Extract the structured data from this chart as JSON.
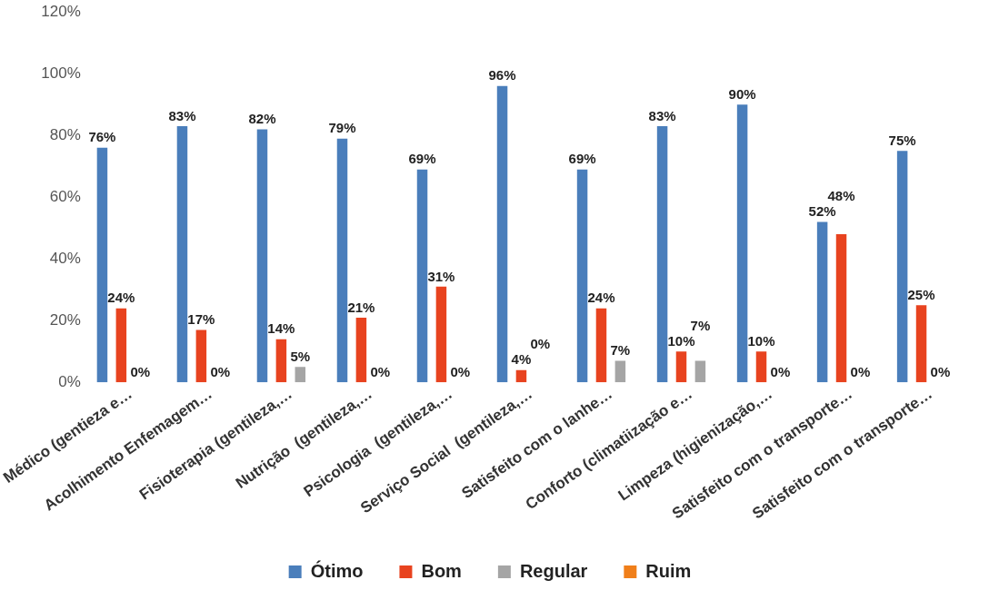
{
  "chart_data": {
    "type": "bar",
    "categories": [
      "Médico (gentieza e…",
      "Acolhimento Enfemagem…",
      "Fisioterapia (gentileza,…",
      "Nutrição  (gentileza,…",
      "Psicologia  (gentileza,…",
      "Serviço Social  (gentileza,…",
      "Satisfeito com o lanhe…",
      "Conforto (climatiização e…",
      "Limpeza (higienização,…",
      "Satisfeito com o transporte…",
      "Satisfeito com o transporte…"
    ],
    "series": [
      {
        "name": "Ótimo",
        "color": "#4a7ebb",
        "values": [
          76,
          83,
          82,
          79,
          69,
          96,
          69,
          83,
          90,
          52,
          75
        ],
        "value_labels": [
          "76%",
          "83%",
          "82%",
          "79%",
          "69%",
          "96%",
          "69%",
          "83%",
          "90%",
          "52%",
          "75%"
        ]
      },
      {
        "name": "Bom",
        "color": "#e8431f",
        "values": [
          24,
          17,
          14,
          21,
          31,
          4,
          24,
          10,
          10,
          48,
          25
        ],
        "value_labels": [
          "24%",
          "17%",
          "14%",
          "21%",
          "31%",
          "4%",
          "24%",
          "10%",
          "10%",
          "48%",
          "25%"
        ]
      },
      {
        "name": "Regular",
        "color": "#a5a5a5",
        "values": [
          0,
          0,
          5,
          0,
          0,
          0,
          7,
          7,
          0,
          0,
          0
        ],
        "value_labels": [
          "0%",
          "0%",
          "5%",
          "0%",
          "0%",
          "0%",
          "7%",
          "7%",
          "0%",
          "0%",
          "0%"
        ]
      },
      {
        "name": "Ruim",
        "color": "#f07f1a",
        "values": [
          0,
          0,
          0,
          0,
          0,
          0,
          0,
          0,
          0,
          0,
          0
        ]
      }
    ],
    "ylim": [
      0,
      120
    ],
    "yticks": [
      {
        "value": 0,
        "label": "0%"
      },
      {
        "value": 20,
        "label": "20%"
      },
      {
        "value": 40,
        "label": "40%"
      },
      {
        "value": 60,
        "label": "60%"
      },
      {
        "value": 80,
        "label": "80%"
      },
      {
        "value": 100,
        "label": "100%"
      },
      {
        "value": 120,
        "label": "120%"
      }
    ],
    "grid": false,
    "legend": "bottom"
  }
}
